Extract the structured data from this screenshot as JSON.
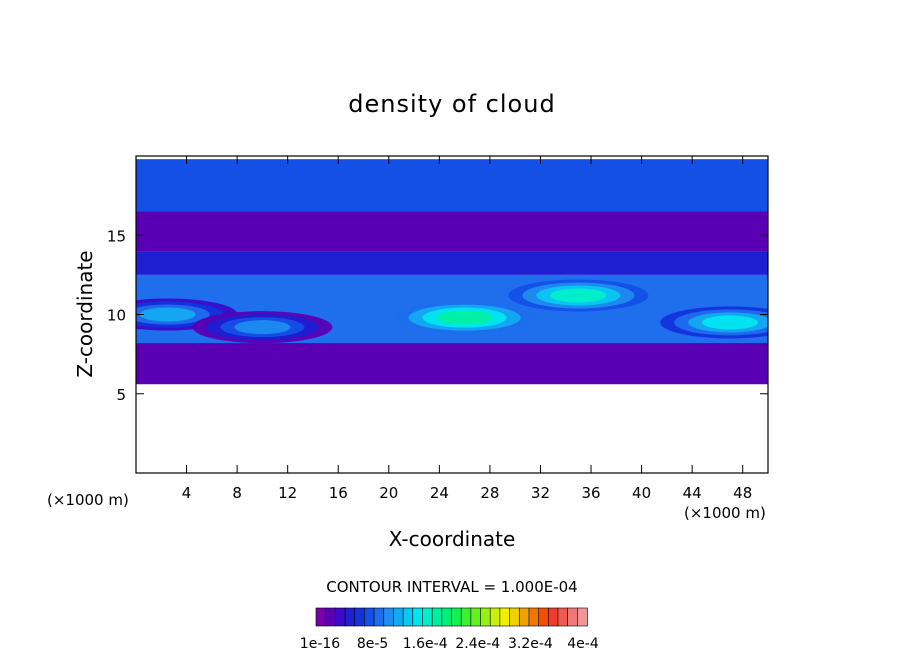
{
  "chart_data": {
    "type": "heatmap",
    "title": "density of cloud",
    "xlabel": "X-coordinate",
    "ylabel": "Z-coordinate",
    "x_unit_left": "(×1000 m)",
    "x_unit_right": "(×1000 m)",
    "xlim": [
      0,
      50
    ],
    "ylim": [
      0,
      20
    ],
    "xticks": [
      "4",
      "8",
      "12",
      "16",
      "20",
      "24",
      "28",
      "32",
      "36",
      "40",
      "44",
      "48"
    ],
    "yticks": [
      "5",
      "10",
      "15"
    ],
    "contour_interval_text": "CONTOUR INTERVAL = 1.000E-04",
    "colorbar_labels": [
      "1e-16",
      "8e-5",
      "1.6e-4",
      "2.4e-4",
      "3.2e-4",
      "4e-4"
    ],
    "colorbar_colors": [
      "#7800a8",
      "#5a00b4",
      "#3c0ac8",
      "#1e1ed2",
      "#1432dc",
      "#1450e6",
      "#1e6eee",
      "#1e8cf0",
      "#14aaf0",
      "#0ac8f0",
      "#00e6f0",
      "#00f0c8",
      "#00f0a0",
      "#00f078",
      "#14f050",
      "#3cf032",
      "#64f01e",
      "#96f014",
      "#c8f00a",
      "#f0f000",
      "#f0d200",
      "#f0a000",
      "#f07800",
      "#f05000",
      "#f03c28",
      "#f05a50",
      "#f07878",
      "#f09696"
    ],
    "field": {
      "z_bands": [
        {
          "z_bottom": 5.6,
          "z_top": 8.2,
          "level": 1
        },
        {
          "z_bottom": 8.2,
          "z_top": 12.5,
          "level": 6
        },
        {
          "z_bottom": 12.5,
          "z_top": 14.0,
          "level": 3
        },
        {
          "z_bottom": 14.0,
          "z_top": 16.5,
          "level": 1
        },
        {
          "z_bottom": 16.5,
          "z_top": 19.8,
          "level": 5
        }
      ],
      "cores": [
        {
          "x": 2.5,
          "z": 10.0,
          "level": 8
        },
        {
          "x": 10,
          "z": 9.2,
          "level": 7
        },
        {
          "x": 26,
          "z": 9.8,
          "level": 12
        },
        {
          "x": 35,
          "z": 11.2,
          "level": 11
        },
        {
          "x": 47,
          "z": 9.5,
          "level": 10
        }
      ]
    }
  }
}
